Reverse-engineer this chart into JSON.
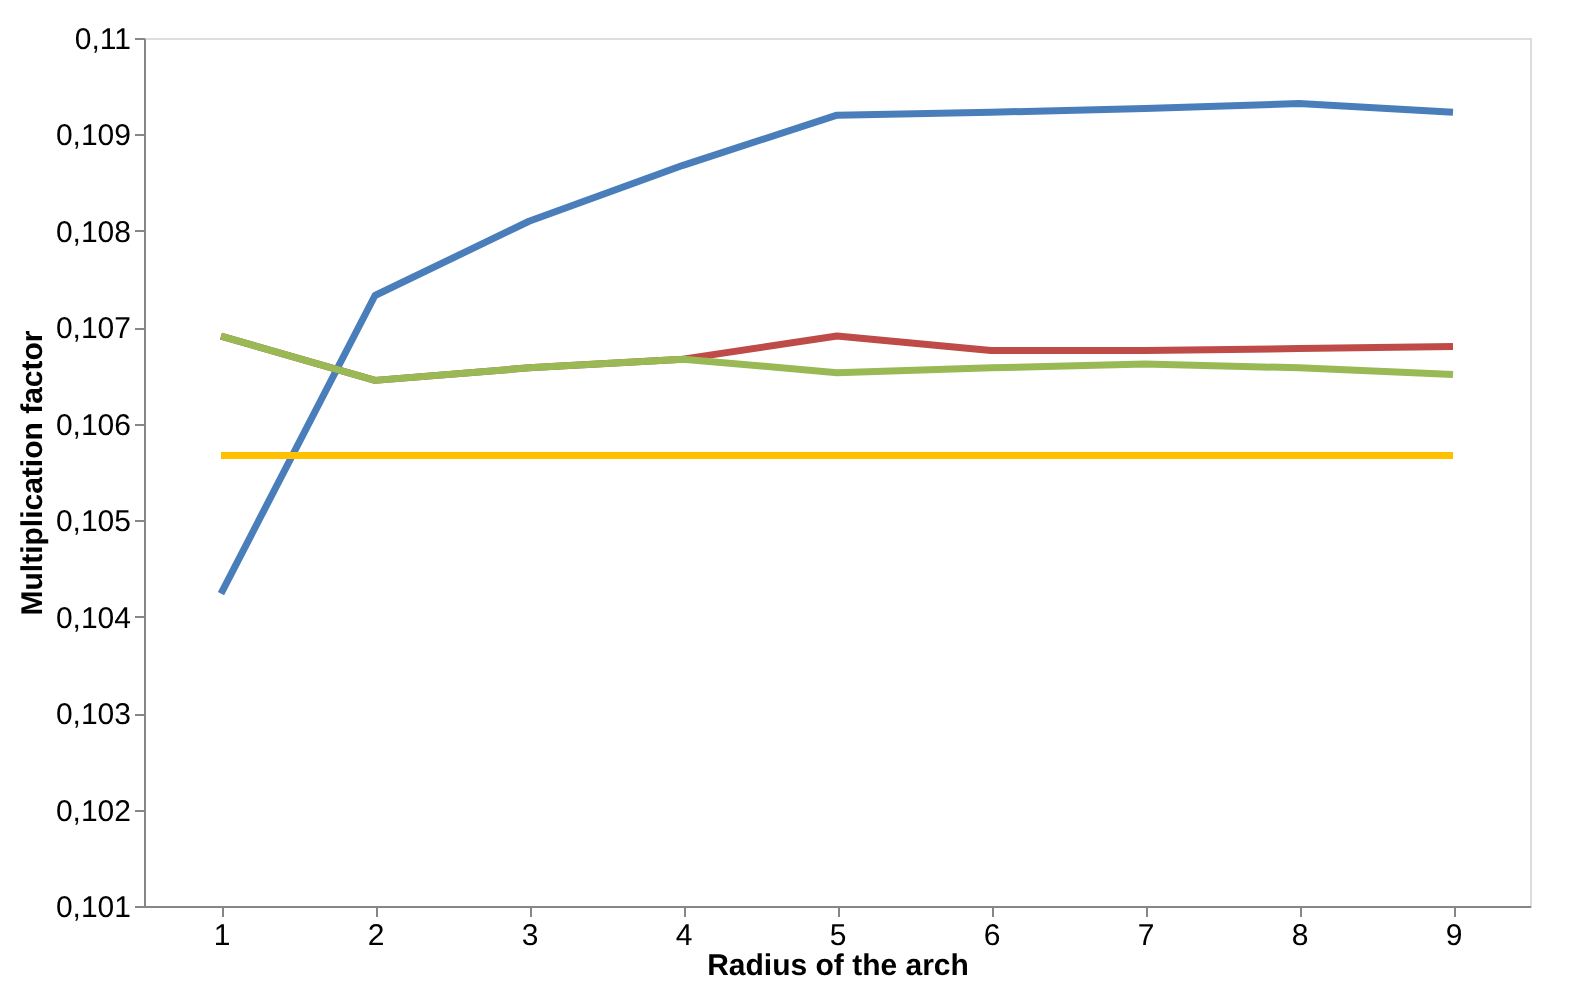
{
  "chart_data": {
    "type": "line",
    "xlabel": "Radius of the arch",
    "ylabel": "Multiplication factor",
    "categories": [
      "1",
      "2",
      "3",
      "4",
      "5",
      "6",
      "7",
      "8",
      "9"
    ],
    "series": [
      {
        "color": "#4a7ebb",
        "values": [
          0.10424,
          0.10733,
          0.1081,
          0.10868,
          0.1092,
          0.10923,
          0.10927,
          0.10932,
          0.10923
        ]
      },
      {
        "color": "#be4b48",
        "values": [
          0.10691,
          0.10645,
          0.10658,
          0.10667,
          0.10691,
          0.10676,
          0.10676,
          0.10678,
          0.1068
        ]
      },
      {
        "color": "#98b954",
        "values": [
          0.10691,
          0.10645,
          0.10658,
          0.10667,
          0.10653,
          0.10658,
          0.10662,
          0.10658,
          0.10651
        ]
      },
      {
        "color": "#ffc000",
        "values": [
          0.10567,
          0.10567,
          0.10567,
          0.10567,
          0.10567,
          0.10567,
          0.10567,
          0.10567,
          0.10567
        ]
      }
    ],
    "ylim": [
      0.101,
      0.11
    ],
    "yticks": [
      {
        "value": 0.101,
        "label": "0,101"
      },
      {
        "value": 0.102,
        "label": "0,102"
      },
      {
        "value": 0.103,
        "label": "0,103"
      },
      {
        "value": 0.104,
        "label": "0,104"
      },
      {
        "value": 0.105,
        "label": "0,105"
      },
      {
        "value": 0.106,
        "label": "0,106"
      },
      {
        "value": 0.107,
        "label": "0,107"
      },
      {
        "value": 0.108,
        "label": "0,108"
      },
      {
        "value": 0.109,
        "label": "0,109"
      },
      {
        "value": 0.11,
        "label": "0,11"
      }
    ],
    "grid": false,
    "legend": false,
    "marker": "none",
    "line_style": "solid"
  }
}
